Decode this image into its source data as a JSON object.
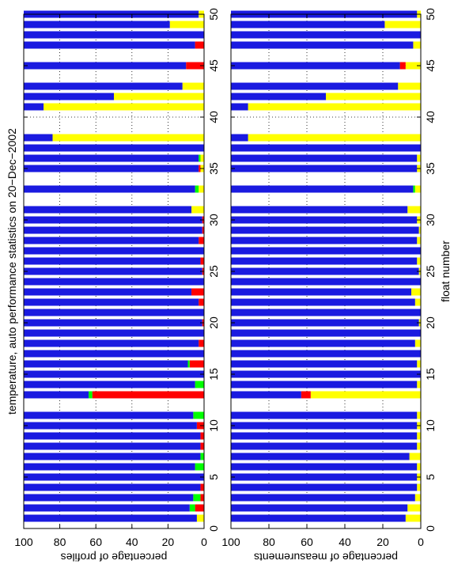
{
  "chart_data": [
    {
      "type": "bar",
      "stacked": true,
      "title": "temperature, auto performance statistics on 20−Dec−2002",
      "ylabel": "percentage of profiles",
      "x": [
        1,
        2,
        3,
        4,
        5,
        6,
        7,
        8,
        9,
        10,
        11,
        12,
        13,
        14,
        15,
        16,
        17,
        18,
        19,
        20,
        21,
        22,
        23,
        24,
        25,
        26,
        27,
        28,
        29,
        30,
        31,
        32,
        33,
        34,
        35,
        36,
        37,
        38,
        39,
        40,
        41,
        42,
        43,
        44,
        45,
        46,
        47,
        48,
        49,
        50
      ],
      "series": [
        {
          "color": "#ffff00",
          "values": [
            4,
            0,
            0,
            0,
            0,
            0,
            0,
            0,
            0,
            0,
            0,
            null,
            0,
            0,
            0,
            0,
            0,
            0,
            0,
            0,
            0,
            0,
            0,
            0,
            0,
            0,
            0,
            0,
            0,
            0,
            7,
            null,
            3,
            null,
            2,
            2,
            0,
            84,
            null,
            null,
            89,
            50,
            12,
            null,
            0,
            null,
            0,
            0,
            19,
            3
          ]
        },
        {
          "color": "#ff0000",
          "values": [
            0,
            5,
            2,
            2,
            0,
            0,
            0,
            2,
            2,
            4,
            0,
            null,
            62,
            0,
            0,
            8,
            0,
            3,
            0,
            1,
            0,
            3,
            7,
            0,
            1,
            2,
            0,
            3,
            1,
            1,
            0,
            null,
            0,
            null,
            1,
            0,
            0,
            0,
            null,
            null,
            0,
            0,
            0,
            null,
            10,
            null,
            5,
            0,
            0,
            0
          ]
        },
        {
          "color": "#00ff00",
          "values": [
            0,
            3,
            4,
            0,
            0,
            5,
            2,
            0,
            0,
            0,
            6,
            null,
            2,
            5,
            0,
            1,
            0,
            0,
            0,
            0,
            0,
            0,
            0,
            0,
            0,
            0,
            0,
            0,
            0,
            0,
            0,
            null,
            2,
            null,
            0,
            1,
            0,
            0,
            null,
            null,
            0,
            0,
            0,
            null,
            0,
            null,
            0,
            0,
            0,
            0
          ]
        },
        {
          "color": "#1a1ae0",
          "values": [
            96,
            92,
            94,
            98,
            100,
            95,
            98,
            98,
            98,
            96,
            94,
            null,
            36,
            95,
            100,
            91,
            100,
            97,
            100,
            99,
            100,
            97,
            93,
            100,
            99,
            98,
            100,
            97,
            99,
            99,
            93,
            null,
            95,
            null,
            97,
            97,
            100,
            16,
            null,
            null,
            11,
            50,
            88,
            null,
            90,
            null,
            95,
            100,
            81,
            97
          ]
        }
      ],
      "xlim": [
        0,
        50
      ],
      "xticks": [
        0,
        5,
        10,
        15,
        20,
        25,
        30,
        35,
        40,
        45,
        50
      ],
      "ylim": [
        0,
        100
      ],
      "yticks": [
        0,
        20,
        40,
        60,
        80,
        100
      ],
      "grid": true
    },
    {
      "type": "bar",
      "stacked": true,
      "ylabel": "percentage of measurements",
      "xlabel": "float number",
      "x": [
        1,
        2,
        3,
        4,
        5,
        6,
        7,
        8,
        9,
        10,
        11,
        12,
        13,
        14,
        15,
        16,
        17,
        18,
        19,
        20,
        21,
        22,
        23,
        24,
        25,
        26,
        27,
        28,
        29,
        30,
        31,
        32,
        33,
        34,
        35,
        36,
        37,
        38,
        39,
        40,
        41,
        42,
        43,
        44,
        45,
        46,
        47,
        48,
        49,
        50
      ],
      "series": [
        {
          "color": "#ffff00",
          "values": [
            8,
            7,
            3,
            2,
            2,
            2,
            6,
            2,
            2,
            2,
            2,
            null,
            58,
            2,
            0,
            2,
            0,
            3,
            0,
            1,
            0,
            3,
            5,
            0,
            1,
            2,
            0,
            2,
            1,
            2,
            7,
            null,
            3,
            null,
            2,
            2,
            0,
            91,
            null,
            null,
            91,
            50,
            12,
            null,
            8,
            null,
            4,
            0,
            19,
            2
          ]
        },
        {
          "color": "#ff0000",
          "values": [
            0,
            0,
            0,
            0,
            0,
            0,
            0,
            0,
            0,
            0,
            0,
            null,
            5,
            0,
            0,
            0,
            0,
            0,
            0,
            0,
            0,
            0,
            0,
            0,
            0,
            0,
            0,
            0,
            0,
            0,
            0,
            null,
            0,
            null,
            0,
            0,
            0,
            0,
            null,
            null,
            0,
            0,
            0,
            null,
            3,
            null,
            0,
            0,
            0,
            0
          ]
        },
        {
          "color": "#00ff00",
          "values": [
            0,
            0,
            0,
            0,
            0,
            0,
            0,
            0,
            0,
            0,
            0,
            null,
            0,
            0,
            0,
            0,
            0,
            0,
            0,
            0,
            0,
            0,
            0,
            0,
            0,
            0,
            0,
            0,
            0,
            0,
            0,
            null,
            1,
            null,
            0,
            0,
            0,
            0,
            null,
            null,
            0,
            0,
            0,
            null,
            0,
            null,
            0,
            0,
            0,
            0
          ]
        },
        {
          "color": "#1a1ae0",
          "values": [
            92,
            93,
            97,
            98,
            98,
            98,
            94,
            98,
            98,
            98,
            98,
            null,
            37,
            98,
            100,
            98,
            100,
            97,
            100,
            99,
            100,
            97,
            95,
            100,
            99,
            98,
            100,
            98,
            99,
            98,
            93,
            null,
            96,
            null,
            98,
            98,
            100,
            9,
            null,
            null,
            9,
            50,
            88,
            null,
            89,
            null,
            96,
            100,
            81,
            98
          ]
        }
      ],
      "xlim": [
        0,
        50
      ],
      "xticks": [
        0,
        5,
        10,
        15,
        20,
        25,
        30,
        35,
        40,
        45,
        50
      ],
      "ylim": [
        0,
        100
      ],
      "yticks": [
        0,
        20,
        40,
        60,
        80,
        100
      ],
      "grid": true
    }
  ]
}
